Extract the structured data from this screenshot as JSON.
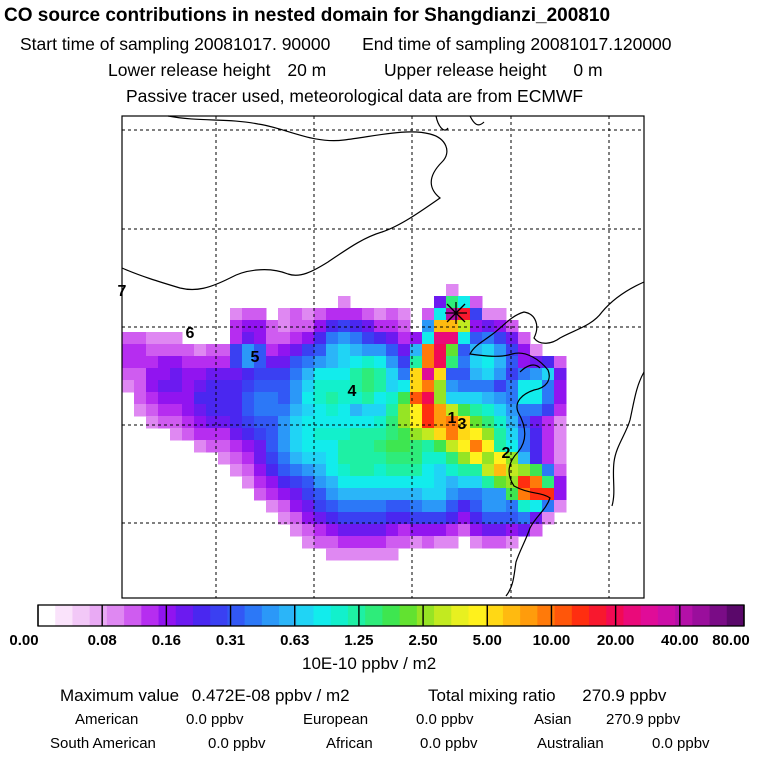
{
  "header": {
    "title": "CO  source contributions in nested domain for Shangdianzi_200810",
    "start_label": "Start time of sampling",
    "start_value": "20081017. 90000",
    "end_label": "End time of sampling",
    "end_value": "20081017.120000",
    "lower_label": "Lower release height",
    "lower_value": "20 m",
    "upper_label": "Upper release height",
    "upper_value": "0 m",
    "note": "Passive tracer used, meteorological data are from ECMWF"
  },
  "chart_data": {
    "type": "heatmap",
    "title": "CO  source contributions in nested domain for Shangdianzi_200810",
    "receptor_marker": "×",
    "region_labels": [
      "1",
      "2",
      "3",
      "4",
      "5",
      "6",
      "7"
    ],
    "colorbar": {
      "tick_labels": [
        "0.00",
        "0.08",
        "0.16",
        "0.31",
        "0.63",
        "1.25",
        "2.50",
        "5.00",
        "10.00",
        "20.00",
        "40.00",
        "80.00"
      ],
      "unit": "10E-10 ppbv / m2",
      "colors": [
        "#ffffff",
        "#fae3fb",
        "#f2c8f7",
        "#e9aaf4",
        "#df88f2",
        "#cf5cf0",
        "#b62df0",
        "#9114f0",
        "#6c1af0",
        "#4a27f0",
        "#3a40f2",
        "#3258f5",
        "#2c78f7",
        "#2b98f8",
        "#2bb5f8",
        "#20d4f5",
        "#12ecec",
        "#12f0cc",
        "#1ef0a4",
        "#2eec7a",
        "#3ee650",
        "#62e230",
        "#96e424",
        "#c2ea20",
        "#e8f020",
        "#fff11c",
        "#ffd815",
        "#ffba10",
        "#ff9c0c",
        "#ff7a0a",
        "#ff560a",
        "#ff2e10",
        "#f8182e",
        "#f20a54",
        "#ea0a7a",
        "#e00c98",
        "#cc0ea8",
        "#b410a8",
        "#9a0e9c",
        "#7a0c86",
        "#5a086a"
      ]
    },
    "summary": {
      "max_label": "Maximum value",
      "max_value": "0.472E-08 ppbv / m2",
      "total_label": "Total mixing ratio",
      "total_value": "270.9 ppbv"
    },
    "regions": [
      {
        "name": "American",
        "value": "0.0 ppbv"
      },
      {
        "name": "European",
        "value": "0.0 ppbv"
      },
      {
        "name": "Asian",
        "value": "270.9 ppbv"
      },
      {
        "name": "South American",
        "value": "0.0 ppbv"
      },
      {
        "name": "African",
        "value": "0.0 ppbv"
      },
      {
        "name": "Australian",
        "value": "0.0 ppbv"
      }
    ]
  }
}
